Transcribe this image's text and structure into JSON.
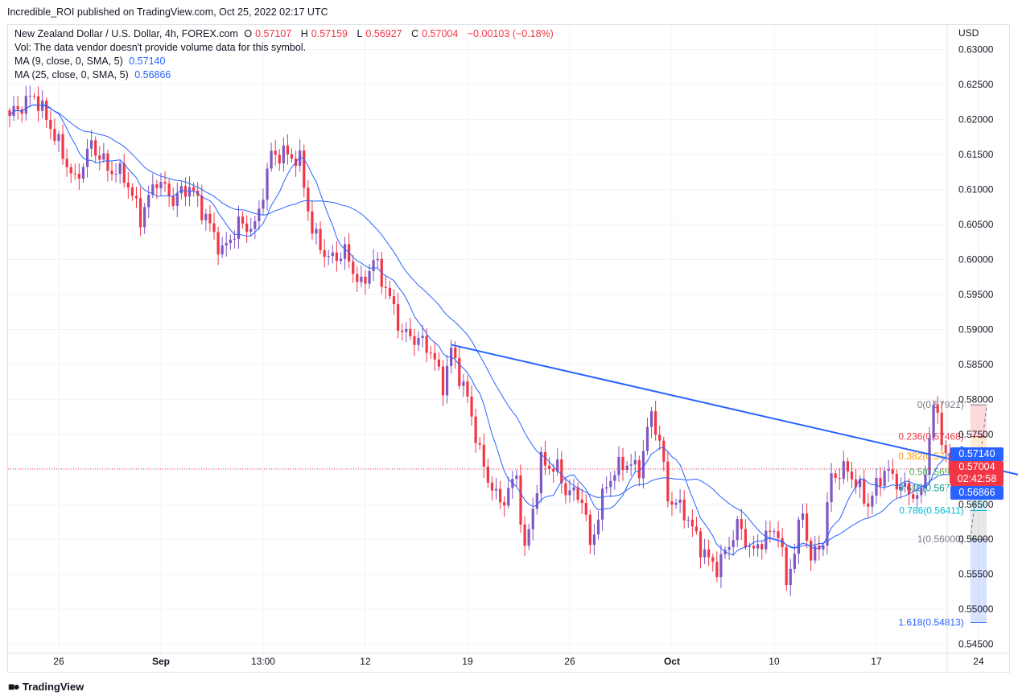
{
  "header": {
    "published": "Incredible_ROI published on TradingView.com, Oct 25, 2022 02:17 UTC"
  },
  "legend": {
    "symbol": "New Zealand Dollar / U.S. Dollar, 4h, FOREX.com",
    "o_label": "O",
    "o_value": "0.57107",
    "h_label": "H",
    "h_value": "0.57159",
    "l_label": "L",
    "l_value": "0.56927",
    "c_label": "C",
    "c_value": "0.57004",
    "change": "−0.00103 (−0.18%)",
    "volume_note": "Vol: The data vendor doesn't provide volume data for this symbol.",
    "ma9_label": "MA (9, close, 0, SMA, 5)",
    "ma9_value": "0.57140",
    "ma25_label": "MA (25, close, 0, SMA, 5)",
    "ma25_value": "0.56866"
  },
  "price_tags": {
    "ma9": "0.57140",
    "last": "0.57004",
    "countdown": "02:42:58",
    "ma25": "0.56866"
  },
  "footer": {
    "brand": "TradingView"
  },
  "colors": {
    "up": "#7e57c2",
    "down": "#f23645",
    "ma": "#2962ff",
    "trendline": "#2962ff",
    "fib_0": "#787b86",
    "fib_0236": "#f23645",
    "fib_0382": "#ff9800",
    "fib_05": "#4caf50",
    "fib_0618": "#089981",
    "fib_0786": "#00bcd4",
    "fib_1": "#787b86",
    "fib_1618": "#2962ff"
  },
  "chart_data": {
    "type": "candlestick",
    "currency": "USD",
    "y_ticks": [
      "0.63000",
      "0.62500",
      "0.62000",
      "0.61500",
      "0.61000",
      "0.60500",
      "0.60000",
      "0.59500",
      "0.59000",
      "0.58500",
      "0.58000",
      "0.57500",
      "0.57000",
      "0.56500",
      "0.56000",
      "0.55500",
      "0.55000",
      "0.54500"
    ],
    "ylim": [
      0.5437,
      0.6335
    ],
    "x_ticks": [
      {
        "label": "26",
        "bold": false,
        "i": 12
      },
      {
        "label": "Sep",
        "bold": true,
        "i": 37
      },
      {
        "label": "13:00",
        "bold": false,
        "i": 62
      },
      {
        "label": "12",
        "bold": false,
        "i": 87
      },
      {
        "label": "19",
        "bold": false,
        "i": 112
      },
      {
        "label": "26",
        "bold": false,
        "i": 137
      },
      {
        "label": "Oct",
        "bold": true,
        "i": 162
      },
      {
        "label": "10",
        "bold": false,
        "i": 187
      },
      {
        "label": "17",
        "bold": false,
        "i": 212
      },
      {
        "label": "24",
        "bold": false,
        "i": 237
      }
    ],
    "ma_lines": [
      {
        "name": "MA (9, close, 0, SMA, 5)",
        "period": 9
      },
      {
        "name": "MA (25, close, 0, SMA, 5)",
        "period": 25
      }
    ],
    "last_price": 0.57004,
    "trendline": {
      "from": [
        108,
        0.5878
      ],
      "to": [
        250,
        0.5688
      ]
    },
    "fib": {
      "x_start_i": 235,
      "x_end_i": 239,
      "levels": [
        {
          "ratio": "0",
          "price": "0.57921",
          "value": 0.57921,
          "color": "#787b86"
        },
        {
          "ratio": "0.236",
          "price": "0.57468",
          "value": 0.57468,
          "color": "#f23645"
        },
        {
          "ratio": "0.382",
          "price": "0.57187",
          "value": 0.57187,
          "color": "#ff9800"
        },
        {
          "ratio": "0.5",
          "price": "0.56961",
          "value": 0.56961,
          "color": "#4caf50"
        },
        {
          "ratio": "0.618",
          "price": "0.56734",
          "value": 0.56734,
          "color": "#089981"
        },
        {
          "ratio": "0.786",
          "price": "0.56411",
          "value": 0.56411,
          "color": "#00bcd4"
        },
        {
          "ratio": "1",
          "price": "0.56000",
          "value": 0.56,
          "color": "#787b86"
        },
        {
          "ratio": "1.618",
          "price": "0.54813",
          "value": 0.54813,
          "color": "#2962ff"
        }
      ]
    },
    "anchors": [
      [
        0,
        0.6205
      ],
      [
        6,
        0.6235
      ],
      [
        10,
        0.619
      ],
      [
        16,
        0.611
      ],
      [
        20,
        0.6165
      ],
      [
        24,
        0.613
      ],
      [
        28,
        0.612
      ],
      [
        32,
        0.606
      ],
      [
        36,
        0.6115
      ],
      [
        40,
        0.6085
      ],
      [
        44,
        0.6105
      ],
      [
        48,
        0.606
      ],
      [
        52,
        0.601
      ],
      [
        56,
        0.605
      ],
      [
        60,
        0.6045
      ],
      [
        64,
        0.615
      ],
      [
        68,
        0.615
      ],
      [
        71,
        0.614
      ],
      [
        74,
        0.604
      ],
      [
        78,
        0.6
      ],
      [
        82,
        0.601
      ],
      [
        86,
        0.596
      ],
      [
        89,
        0.6
      ],
      [
        92,
        0.596
      ],
      [
        96,
        0.5895
      ],
      [
        100,
        0.5885
      ],
      [
        103,
        0.587
      ],
      [
        106,
        0.582
      ],
      [
        108,
        0.587
      ],
      [
        112,
        0.58
      ],
      [
        116,
        0.57
      ],
      [
        120,
        0.565
      ],
      [
        124,
        0.569
      ],
      [
        126,
        0.558
      ],
      [
        130,
        0.571
      ],
      [
        134,
        0.57
      ],
      [
        136,
        0.567
      ],
      [
        140,
        0.566
      ],
      [
        142,
        0.559
      ],
      [
        146,
        0.568
      ],
      [
        150,
        0.571
      ],
      [
        154,
        0.57
      ],
      [
        157,
        0.578
      ],
      [
        159,
        0.574
      ],
      [
        161,
        0.566
      ],
      [
        165,
        0.564
      ],
      [
        169,
        0.559
      ],
      [
        171,
        0.557
      ],
      [
        173,
        0.556
      ],
      [
        175,
        0.558
      ],
      [
        178,
        0.562
      ],
      [
        182,
        0.558
      ],
      [
        184,
        0.56
      ],
      [
        188,
        0.5615
      ],
      [
        190,
        0.5535
      ],
      [
        194,
        0.564
      ],
      [
        196,
        0.557
      ],
      [
        199,
        0.56
      ],
      [
        201,
        0.569
      ],
      [
        205,
        0.57
      ],
      [
        210,
        0.565
      ],
      [
        214,
        0.57
      ],
      [
        219,
        0.567
      ],
      [
        223,
        0.566
      ],
      [
        226,
        0.579
      ],
      [
        228,
        0.575
      ],
      [
        230,
        0.569
      ],
      [
        232,
        0.5715
      ],
      [
        234,
        0.57
      ]
    ]
  }
}
